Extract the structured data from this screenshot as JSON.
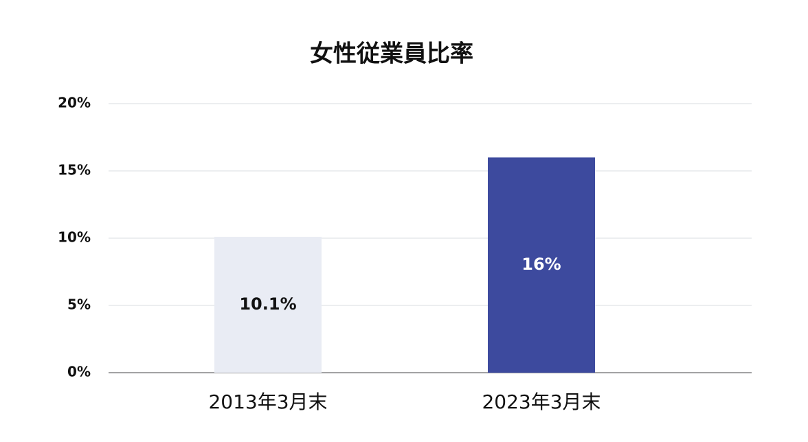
{
  "chart_data": {
    "type": "bar",
    "title": "女性従業員比率",
    "categories": [
      "2013年3月末",
      "2023年3月末"
    ],
    "values": [
      10.1,
      16
    ],
    "value_labels": [
      "10.1%",
      "16%"
    ],
    "colors": [
      "#e9ecf4",
      "#3d4a9e"
    ],
    "ylim": [
      0,
      20
    ],
    "yticks": [
      {
        "value": 0,
        "label": "0%"
      },
      {
        "value": 5,
        "label": "5%"
      },
      {
        "value": 10,
        "label": "10%"
      },
      {
        "value": 15,
        "label": "15%"
      },
      {
        "value": 20,
        "label": "20%"
      }
    ],
    "grid": true
  }
}
